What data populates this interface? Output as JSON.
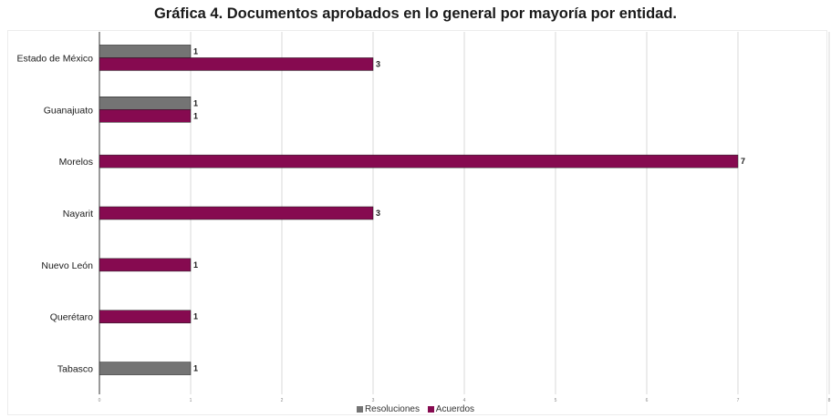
{
  "chart_data": {
    "type": "bar",
    "orientation": "horizontal",
    "title": "Gráfica 4. Documentos aprobados en lo general por mayoría por entidad.",
    "categories": [
      "Estado de México",
      "Guanajuato",
      "Morelos",
      "Nayarit",
      "Nuevo León",
      "Querétaro",
      "Tabasco"
    ],
    "series": [
      {
        "name": "Resoluciones",
        "color": "#747474",
        "values": [
          1,
          1,
          null,
          null,
          null,
          null,
          1
        ]
      },
      {
        "name": "Acuerdos",
        "color": "#860a50",
        "values": [
          3,
          1,
          7,
          3,
          1,
          1,
          null
        ]
      }
    ],
    "xlim": [
      0,
      8
    ],
    "x_ticks": [
      "0",
      "1",
      "2",
      "3",
      "4",
      "5",
      "6",
      "7",
      "8"
    ],
    "grid": true,
    "legend_position": "bottom"
  }
}
